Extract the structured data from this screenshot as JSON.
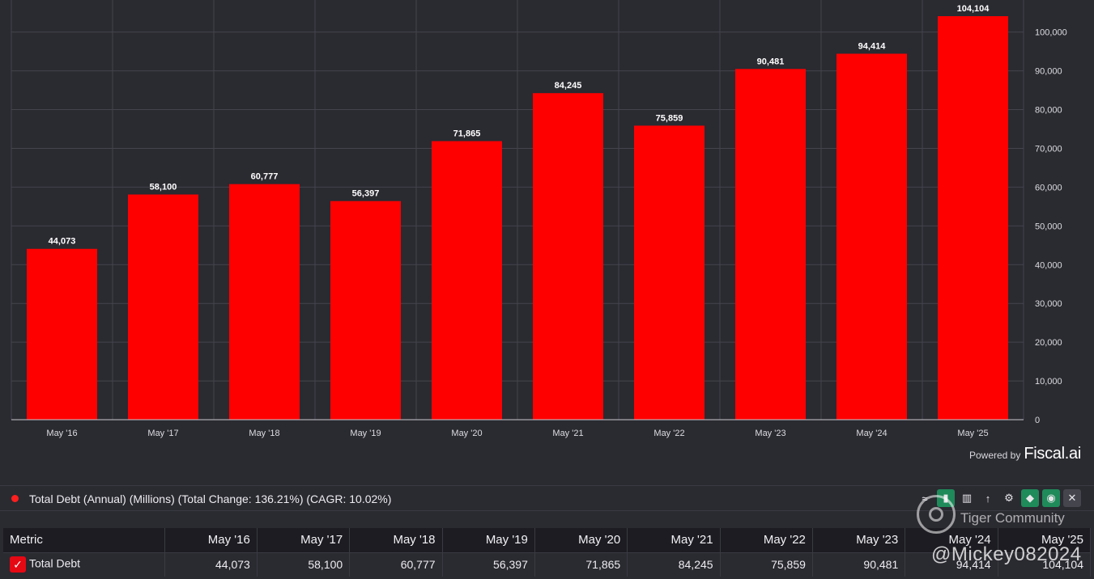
{
  "chart_data": {
    "type": "bar",
    "categories": [
      "May '16",
      "May '17",
      "May '18",
      "May '19",
      "May '20",
      "May '21",
      "May '22",
      "May '23",
      "May '24",
      "May '25"
    ],
    "tick_labels": [
      "May '16",
      "May '17",
      "May '18",
      "May '19",
      "May '20",
      "May '21",
      "May '22",
      "May '23",
      "May '24",
      "May '25"
    ],
    "values": [
      44073,
      58100,
      60777,
      56397,
      71865,
      84245,
      75859,
      90481,
      94414,
      104104
    ],
    "value_labels": [
      "44,073",
      "58,100",
      "60,777",
      "56,397",
      "71,865",
      "84,245",
      "75,859",
      "90,481",
      "94,414",
      "104,104"
    ],
    "series_name": "Total Debt",
    "bar_color": "#ff0000",
    "ylim": [
      0,
      104104
    ],
    "yticks": [
      0,
      10000,
      20000,
      30000,
      40000,
      50000,
      60000,
      70000,
      80000,
      90000,
      100000
    ],
    "ytick_labels": [
      "0",
      "10,000",
      "20,000",
      "30,000",
      "40,000",
      "50,000",
      "60,000",
      "70,000",
      "80,000",
      "90,000",
      "100,000"
    ],
    "y_axis_side": "right",
    "grid": true
  },
  "branding": {
    "powered_by": "Powered by",
    "brand": "Fiscal.ai"
  },
  "legend": {
    "text": "Total Debt (Annual) (Millions) (Total Change: 136.21%) (CAGR: 10.02%)",
    "dot_color": "#ff1f1f"
  },
  "toolbar": {
    "icons": [
      "trend-icon",
      "bar-chart-icon",
      "grouped-bar-icon",
      "sort-icon",
      "gear-icon",
      "tag-icon",
      "eye-icon",
      "close-icon"
    ]
  },
  "table": {
    "metric_header": "Metric",
    "columns": [
      "May '16",
      "May '17",
      "May '18",
      "May '19",
      "May '20",
      "May '21",
      "May '22",
      "May '23",
      "May '24",
      "May '25"
    ],
    "rows": [
      {
        "metric": "Total Debt",
        "values": [
          "44,073",
          "58,100",
          "60,777",
          "56,397",
          "71,865",
          "84,245",
          "75,859",
          "90,481",
          "94,414",
          "104,104"
        ]
      }
    ]
  },
  "watermark": {
    "title": "Tiger Community",
    "user": "@Mickey082024"
  }
}
